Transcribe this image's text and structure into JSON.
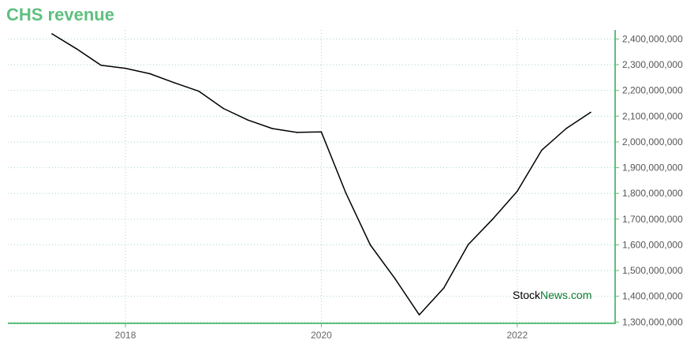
{
  "chart_data": {
    "type": "line",
    "title": "CHS revenue",
    "xlabel": "",
    "ylabel": "",
    "x_ticks": [
      "2018",
      "2020",
      "2022"
    ],
    "x_tick_values": [
      2018,
      2020,
      2022
    ],
    "xlim": [
      2016.8,
      2023.0
    ],
    "ylim": [
      1295000000,
      2435000000
    ],
    "y_ticks": [
      {
        "value": 2400000000,
        "label": "2,400,000,000"
      },
      {
        "value": 2300000000,
        "label": "2,300,000,000"
      },
      {
        "value": 2200000000,
        "label": "2,200,000,000"
      },
      {
        "value": 2100000000,
        "label": "2,100,000,000"
      },
      {
        "value": 2000000000,
        "label": "2,000,000,000"
      },
      {
        "value": 1900000000,
        "label": "1,900,000,000"
      },
      {
        "value": 1800000000,
        "label": "1,800,000,000"
      },
      {
        "value": 1700000000,
        "label": "1,700,000,000"
      },
      {
        "value": 1600000000,
        "label": "1,600,000,000"
      },
      {
        "value": 1500000000,
        "label": "1,500,000,000"
      },
      {
        "value": 1400000000,
        "label": "1,400,000,000"
      },
      {
        "value": 1300000000,
        "label": "1,300,000,000"
      }
    ],
    "grid": true,
    "series": [
      {
        "color": "#000000",
        "x": [
          2017.25,
          2017.5,
          2017.75,
          2018.0,
          2018.25,
          2018.5,
          2018.75,
          2019.0,
          2019.25,
          2019.5,
          2019.75,
          2020.0,
          2020.25,
          2020.5,
          2020.75,
          2021.0,
          2021.25,
          2021.5,
          2021.75,
          2022.0,
          2022.25,
          2022.5,
          2022.75
        ],
        "y": [
          2420000000,
          2362000000,
          2298000000,
          2286000000,
          2265000000,
          2230000000,
          2197000000,
          2130000000,
          2085000000,
          2052000000,
          2037000000,
          2039000000,
          1802000000,
          1600000000,
          1470000000,
          1328000000,
          1432000000,
          1601000000,
          1700000000,
          1808000000,
          1968000000,
          2052000000,
          2115000000
        ]
      }
    ]
  },
  "watermark": {
    "part1": "Stock",
    "part2": "News",
    "part3": ".com",
    "color1": "#000000",
    "color2": "#0a7a2f"
  },
  "colors": {
    "title": "#5fbf7f",
    "axis": "#5fbf7f",
    "grid": "#a8d8c0",
    "line": "#000000"
  }
}
